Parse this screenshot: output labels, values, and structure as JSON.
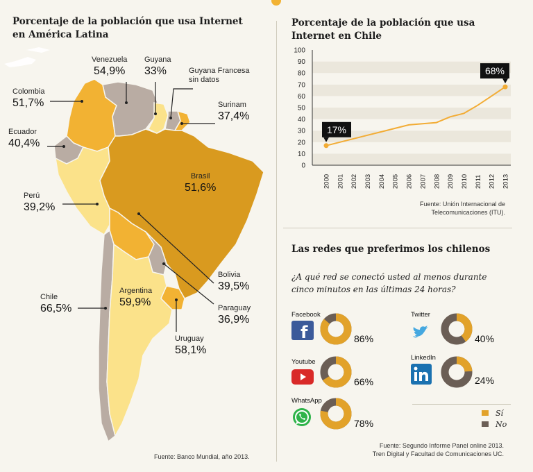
{
  "map": {
    "title_line1": "Porcentaje de la población que usa Internet",
    "title_line2": "en América Latina",
    "source": "Fuente: Banco Mundial, año 2013.",
    "countries": [
      {
        "name": "Venezuela",
        "value": "54,9%"
      },
      {
        "name": "Guyana",
        "value": "33%"
      },
      {
        "name": "Guyana Francesa",
        "value": "sin datos"
      },
      {
        "name": "Colombia",
        "value": "51,7%"
      },
      {
        "name": "Surinam",
        "value": "37,4%"
      },
      {
        "name": "Ecuador",
        "value": "40,4%"
      },
      {
        "name": "Brasil",
        "value": "51,6%"
      },
      {
        "name": "Perú",
        "value": "39,2%"
      },
      {
        "name": "Bolivia",
        "value": "39,5%"
      },
      {
        "name": "Chile",
        "value": "66,5%"
      },
      {
        "name": "Argentina",
        "value": "59,9%"
      },
      {
        "name": "Paraguay",
        "value": "36,9%"
      },
      {
        "name": "Uruguay",
        "value": "58,1%"
      }
    ],
    "colors": {
      "dark": "#d99a1f",
      "medium": "#f2b233",
      "light": "#fbe28a",
      "gray": "#b9aca3"
    }
  },
  "chart_data": [
    {
      "type": "line",
      "title": "Porcentaje de la población que usa Internet en Chile",
      "title_line1": "Porcentaje de la población que usa",
      "title_line2": "Internet en Chile",
      "x": [
        2000,
        2001,
        2002,
        2003,
        2004,
        2005,
        2006,
        2007,
        2008,
        2009,
        2010,
        2011,
        2012,
        2013
      ],
      "series": [
        {
          "values": [
            17,
            20,
            23,
            26,
            29,
            32,
            35,
            36,
            37,
            42,
            45,
            52,
            60,
            68
          ]
        }
      ],
      "yticks": [
        0,
        10,
        20,
        30,
        40,
        50,
        60,
        70,
        80,
        90,
        100
      ],
      "ylim": [
        0,
        100
      ],
      "annotations": [
        {
          "x": 2000,
          "label": "17%"
        },
        {
          "x": 2013,
          "label": "68%"
        }
      ],
      "source_line1": "Fuente: Unión Internacional de",
      "source_line2": "Telecomunicaciones (ITU).",
      "color": "#f2ac35"
    },
    {
      "type": "pie",
      "title": "Las redes que preferimos los chilenos",
      "question_line1": "¿A qué red se conectó usted al menos durante",
      "question_line2": "cinco minutos en las últimas 24 horas?",
      "networks": [
        {
          "name": "Facebook",
          "si": 86,
          "label": "86%",
          "icon": "facebook-icon"
        },
        {
          "name": "Twitter",
          "si": 40,
          "label": "40%",
          "icon": "twitter-icon"
        },
        {
          "name": "Youtube",
          "si": 66,
          "label": "66%",
          "icon": "youtube-icon"
        },
        {
          "name": "LinkedIn",
          "si": 24,
          "label": "24%",
          "icon": "linkedin-icon"
        },
        {
          "name": "WhatsApp",
          "si": 78,
          "label": "78%",
          "icon": "whatsapp-icon"
        }
      ],
      "legend": [
        {
          "label": "Sí",
          "color": "#e2a22a"
        },
        {
          "label": "No",
          "color": "#6b5e55"
        }
      ],
      "legend_placement": "bottom-right",
      "source_line1": "Fuente: Segundo Informe Panel online 2013.",
      "source_line2": "Tren Digital y Facultad de Comunicaciones UC."
    }
  ]
}
